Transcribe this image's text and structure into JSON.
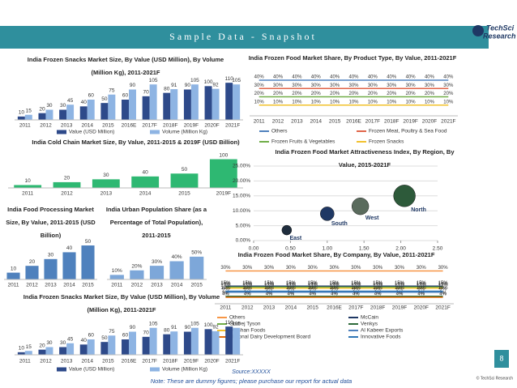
{
  "header": {
    "title": "Sample Data - Snapshot"
  },
  "logo": [
    "TechSci",
    "Research"
  ],
  "footer": {
    "source": "Source:XXXXX",
    "note": "Note: These are dummy figures; please purchase our report for actual data"
  },
  "page_number": 8,
  "copyright": "© TechSci Research",
  "chart_data": [
    {
      "type": "bar",
      "title": "India Frozen Snacks Market Size, By Value (USD Million), By Volume (Million Kg), 2011-2021F",
      "categories": [
        "2011",
        "2012",
        "2013",
        "2014",
        "2015",
        "2016E",
        "2017F",
        "2018F",
        "2019F",
        "2020F",
        "2021F"
      ],
      "series": [
        {
          "name": "Value (USD Million)",
          "color": "#2e4a8a",
          "values": [
            10,
            20,
            30,
            40,
            50,
            60,
            70,
            80,
            90,
            100,
            110
          ]
        },
        {
          "name": "Volume (Million Kg)",
          "color": "#8eb4e3",
          "values": [
            15,
            30,
            45,
            60,
            75,
            90,
            105,
            91,
            105,
            92,
            105
          ]
        }
      ],
      "ylim": [
        0,
        120
      ]
    },
    {
      "type": "line",
      "title": "India Frozen Food Market Share, By Product Type, By Value, 2011-2021F",
      "categories": [
        "2011",
        "2012",
        "2013",
        "2014",
        "2015",
        "2016E",
        "2017F",
        "2018F",
        "2019F",
        "2020F",
        "2021F"
      ],
      "series": [
        {
          "name": "Others",
          "color": "#4f81bd",
          "values": [
            40,
            40,
            40,
            40,
            40,
            40,
            40,
            40,
            40,
            40,
            40
          ],
          "value_labels": [
            "40%",
            "40%",
            "40%",
            "40%",
            "40%",
            "40%",
            "40%",
            "40%",
            "40%",
            "40%",
            "40%"
          ]
        },
        {
          "name": "Frozen Meat, Poultry & Sea Food",
          "color": "#e0654a",
          "values": [
            30,
            30,
            30,
            30,
            30,
            30,
            30,
            30,
            30,
            30,
            30
          ],
          "value_labels": [
            "30%",
            "30%",
            "30%",
            "30%",
            "30%",
            "30%",
            "30%",
            "30%",
            "30%",
            "30%",
            "30%"
          ]
        },
        {
          "name": "Frozen Fruits & Vegetables",
          "color": "#70ad47",
          "values": [
            20,
            20,
            20,
            20,
            20,
            20,
            20,
            20,
            20,
            20,
            20
          ],
          "value_labels": [
            "20%",
            "20%",
            "20%",
            "20%",
            "20%",
            "20%",
            "20%",
            "20%",
            "20%",
            "20%",
            "20%"
          ]
        },
        {
          "name": "Frozen Snacks",
          "color": "#f2c12e",
          "values": [
            10,
            10,
            10,
            10,
            10,
            10,
            10,
            10,
            10,
            10,
            10
          ],
          "value_labels": [
            "10%",
            "10%",
            "10%",
            "10%",
            "10%",
            "10%",
            "10%",
            "10%",
            "10%",
            "10%",
            "10%"
          ]
        }
      ],
      "ylim": [
        0,
        42
      ]
    },
    {
      "type": "bar",
      "title": "India Cold Chain Market Size, By Value, 2011-2015 & 2019F (USD Billion)",
      "categories": [
        "2011",
        "2012",
        "2013",
        "2014",
        "2015",
        "2019F"
      ],
      "values": [
        10,
        20,
        30,
        40,
        50,
        100
      ],
      "color": "#2eb872",
      "ylim": [
        0,
        110
      ]
    },
    {
      "type": "bar",
      "title": "India Food Processing Market Size, By Value, 2011-2015 (USD Billion)",
      "categories": [
        "2011",
        "2012",
        "2013",
        "2014",
        "2015"
      ],
      "values": [
        10,
        20,
        30,
        40,
        50
      ],
      "color": "#4f81bd",
      "ylim": [
        0,
        56
      ]
    },
    {
      "type": "bar",
      "title": "India Urban Population Share (as a Percentage of Total Population), 2011-2015",
      "categories": [
        "2011",
        "2012",
        "2013",
        "2014",
        "2015"
      ],
      "values": [
        10,
        20,
        30,
        40,
        50
      ],
      "value_labels": [
        "10%",
        "20%",
        "30%",
        "40%",
        "50%"
      ],
      "color": "#7da7d9",
      "ylim": [
        0,
        80
      ]
    },
    {
      "type": "bubble",
      "title": "India Frozen Food Market Attractiveness Index, By Region, By Value, 2015-2021F",
      "points": [
        {
          "label": "East",
          "x": 0.45,
          "y": 3.5,
          "size": 1,
          "color": "#1f2d3d"
        },
        {
          "label": "South",
          "x": 1.0,
          "y": 9,
          "size": 2,
          "color": "#1f3864"
        },
        {
          "label": "West",
          "x": 1.45,
          "y": 11.5,
          "size": 3,
          "color": "#5a6b5d"
        },
        {
          "label": "North",
          "x": 2.05,
          "y": 15,
          "size": 5,
          "color": "#2d5a3a"
        }
      ],
      "xlim": [
        0,
        2.5
      ],
      "xticks": [
        {
          "value": 0,
          "label": "0.00"
        },
        {
          "value": 0.5,
          "label": "0.50"
        },
        {
          "value": 1,
          "label": "1.00"
        },
        {
          "value": 1.5,
          "label": "1.50"
        },
        {
          "value": 2,
          "label": "2.00"
        },
        {
          "value": 2.5,
          "label": "2.50"
        }
      ],
      "ylim": [
        0,
        25
      ],
      "yticks": [
        {
          "value": 0,
          "label": "0.00%"
        },
        {
          "value": 5,
          "label": "5.00%"
        },
        {
          "value": 10,
          "label": "10.00%"
        },
        {
          "value": 15,
          "label": "15.00%"
        },
        {
          "value": 20,
          "label": "20.00%"
        },
        {
          "value": 25,
          "label": "25.00%"
        }
      ],
      "grid": true
    },
    {
      "type": "line",
      "title": "India Frozen Food Market Share, By Company, By Value, 2011-2021F",
      "categories": [
        "2011",
        "2012",
        "2013",
        "2014",
        "2015",
        "2016E",
        "2017F",
        "2018F",
        "2019F",
        "2020F",
        "2021F"
      ],
      "series": [
        {
          "name": "Others",
          "color": "#f79646",
          "values": [
            30,
            30,
            30,
            30,
            30,
            30,
            30,
            30,
            30,
            30,
            30
          ],
          "value_labels": [
            "30%",
            "30%",
            "30%",
            "30%",
            "30%",
            "30%",
            "30%",
            "30%",
            "30%",
            "30%",
            "30%"
          ]
        },
        {
          "name": "McCain",
          "color": "#1f3864",
          "values": [
            15,
            15,
            15,
            15,
            15,
            15,
            15,
            15,
            15,
            15,
            15
          ],
          "value_labels": [
            "15%",
            "15%",
            "15%",
            "15%",
            "15%",
            "15%",
            "15%",
            "15%",
            "15%",
            "15%",
            "15%"
          ]
        },
        {
          "name": "Godrej Tyson",
          "color": "#70ad47",
          "values": [
            14,
            14,
            14,
            14,
            14,
            14,
            14,
            14,
            14,
            14,
            14
          ],
          "value_labels": [
            "14%",
            "14%",
            "14%",
            "14%",
            "14%",
            "14%",
            "14%",
            "14%",
            "14%",
            "14%",
            "14%"
          ]
        },
        {
          "name": "Venkys",
          "color": "#2d6a3a",
          "values": [
            5,
            5,
            5,
            5,
            5,
            5,
            5,
            5,
            5,
            5,
            5
          ],
          "value_labels": [
            "5%",
            "5%",
            "5%",
            "5%",
            "5%",
            "5%",
            "5%",
            "5%",
            "5%",
            "5%",
            "5%"
          ]
        },
        {
          "name": "Darshan Foods",
          "color": "#f2c12e",
          "values": [
            13,
            13,
            13,
            13,
            13,
            13,
            13,
            13,
            13,
            13,
            13
          ],
          "value_labels": [
            "13%",
            "13%",
            "13%",
            "13%",
            "13%",
            "13%",
            "13%",
            "13%",
            "13%",
            "13%",
            "13%"
          ]
        },
        {
          "name": "Al Kabeer Exports",
          "color": "#4f81bd",
          "values": [
            9,
            9,
            9,
            9,
            9,
            9,
            9,
            9,
            9,
            9,
            9
          ],
          "value_labels": [
            "9%",
            "9%",
            "9%",
            "9%",
            "9%",
            "9%",
            "9%",
            "9%",
            "9%",
            "9%",
            "9%"
          ]
        },
        {
          "name": "National Dairy Development Board",
          "color": "#e36c09",
          "values": [
            4,
            4,
            4,
            4,
            4,
            4,
            4,
            4,
            4,
            4,
            4
          ],
          "value_labels": [
            "4%",
            "4%",
            "4%",
            "4%",
            "4%",
            "4%",
            "4%",
            "4%",
            "4%",
            "4%",
            "4%"
          ]
        },
        {
          "name": "Innovative Foods",
          "color": "#2f75b5",
          "values": [
            10,
            10,
            10,
            10,
            10,
            10,
            10,
            10,
            10,
            10,
            10
          ],
          "value_labels": [
            "10%",
            "10%",
            "10%",
            "10%",
            "10%",
            "10%",
            "10%",
            "10%",
            "10%",
            "10%",
            "10%"
          ]
        }
      ],
      "ylim": [
        0,
        32
      ]
    },
    {
      "type": "bar",
      "title": "India Frozen Snacks Market Size, By Value (USD Million), By Volume (Million Kg), 2011-2021F",
      "categories": [
        "2011",
        "2012",
        "2013",
        "2014",
        "2015",
        "2016E",
        "2017F",
        "2018F",
        "2019F",
        "2020F",
        "2021F"
      ],
      "series": [
        {
          "name": "Value (USD Million)",
          "color": "#2e4a8a",
          "values": [
            10,
            20,
            30,
            40,
            50,
            60,
            70,
            80,
            90,
            100,
            110
          ]
        },
        {
          "name": "Volume (Million Kg)",
          "color": "#8eb4e3",
          "values": [
            15,
            30,
            45,
            60,
            75,
            90,
            105,
            91,
            105,
            92,
            105
          ]
        }
      ],
      "ylim": [
        0,
        120
      ]
    }
  ]
}
